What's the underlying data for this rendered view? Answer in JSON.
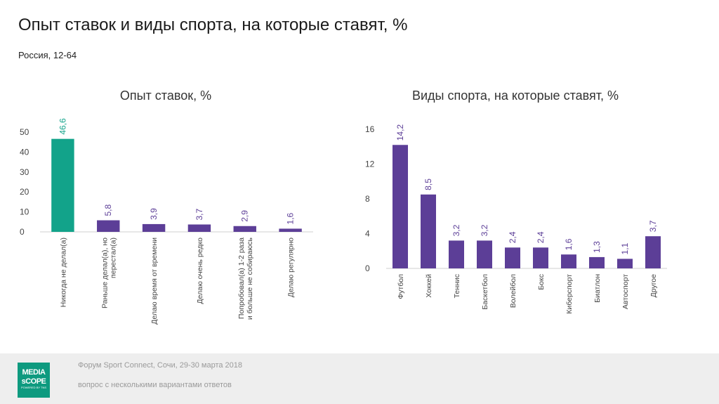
{
  "header": {
    "title": "Опыт ставок и виды спорта, на которые ставят, %",
    "subtitle": "Россия, 12-64"
  },
  "footer": {
    "event": "Форум Sport Connect, Сочи, 29-30 марта 2018",
    "note": "вопрос с несколькими вариантами ответов",
    "logo_top": "MEDIA",
    "logo_bottom": "sCOPE",
    "logo_tagline": "POWERED BY TNS"
  },
  "colors": {
    "teal": "#12a38a",
    "purple": "#5c3e97",
    "axis": "#cfcfcf"
  },
  "chart_data": [
    {
      "type": "bar",
      "title": "Опыт ставок, %",
      "categories": [
        "Никогда не делал(а)",
        "Раньше делал(а), но перестал(а)",
        "Делаю время от времени",
        "Делаю очень редко",
        "Попробовал(а) 1-2 раза и больше не собираюсь",
        "Делаю регулярно"
      ],
      "values": [
        46.6,
        5.8,
        3.9,
        3.7,
        2.9,
        1.6
      ],
      "value_labels": [
        "46,6",
        "5,8",
        "3,9",
        "3,7",
        "2,9",
        "1,6"
      ],
      "highlight_index": 0,
      "yticks": [
        "0",
        "10",
        "20",
        "30",
        "40",
        "50"
      ],
      "ylim": [
        0,
        50
      ],
      "xlabel": "",
      "ylabel": "",
      "grid": false
    },
    {
      "type": "bar",
      "title": "Виды спорта, на которые ставят, %",
      "categories": [
        "Футбол",
        "Хоккей",
        "Теннис",
        "Баскетбол",
        "Волейбол",
        "Бокс",
        "Киберспорт",
        "Биатлон",
        "Автоспорт",
        "Другое"
      ],
      "values": [
        14.2,
        8.5,
        3.2,
        3.2,
        2.4,
        2.4,
        1.6,
        1.3,
        1.1,
        3.7
      ],
      "value_labels": [
        "14,2",
        "8,5",
        "3,2",
        "3,2",
        "2,4",
        "2,4",
        "1,6",
        "1,3",
        "1,1",
        "3,7"
      ],
      "yticks": [
        "0",
        "4",
        "8",
        "12",
        "16"
      ],
      "ylim": [
        0,
        16
      ],
      "xlabel": "",
      "ylabel": "",
      "grid": false
    }
  ]
}
